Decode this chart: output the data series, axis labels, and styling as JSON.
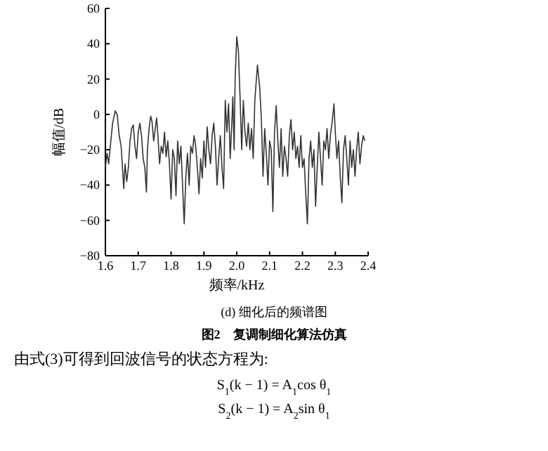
{
  "chart_data": {
    "type": "line",
    "title": "(d) 细化后的频谱图",
    "xlabel": "频率/kHz",
    "ylabel": "幅值/dB",
    "annotations": [
      "图2　复调制细化算法仿真",
      "由式(3)可得到回波信号的状态方程为:",
      "S$_{1}$(k − 1) = A$_{1}$cos θ$_{1}$",
      "S$_{2}$(k − 1) = A$_{2}$sin θ$_{1}$"
    ],
    "xlim": [
      1.6,
      2.4
    ],
    "ylim": [
      -80,
      60
    ],
    "xticks": [
      1.6,
      1.7,
      1.8,
      1.9,
      {
        "value": 2.0,
        "label": "2.0"
      },
      2.1,
      2.2,
      2.3,
      2.4
    ],
    "yticks": [
      -80,
      -60,
      -40,
      -20,
      0,
      20,
      40,
      60
    ],
    "line_style": "solid",
    "series": [
      {
        "color": "#333333",
        "x": [
          1.6,
          1.605,
          1.61,
          1.615,
          1.622,
          1.63,
          1.636,
          1.642,
          1.648,
          1.652,
          1.656,
          1.66,
          1.665,
          1.67,
          1.675,
          1.68,
          1.685,
          1.69,
          1.695,
          1.7,
          1.705,
          1.71,
          1.715,
          1.72,
          1.725,
          1.728,
          1.733,
          1.738,
          1.742,
          1.747,
          1.752,
          1.756,
          1.76,
          1.765,
          1.77,
          1.775,
          1.78,
          1.785,
          1.79,
          1.795,
          1.8,
          1.805,
          1.81,
          1.815,
          1.82,
          1.825,
          1.83,
          1.835,
          1.84,
          1.845,
          1.85,
          1.855,
          1.86,
          1.865,
          1.87,
          1.875,
          1.88,
          1.885,
          1.89,
          1.895,
          1.9,
          1.905,
          1.91,
          1.915,
          1.92,
          1.925,
          1.93,
          1.935,
          1.94,
          1.945,
          1.95,
          1.955,
          1.96,
          1.965,
          1.97,
          1.975,
          1.98,
          1.985,
          1.988,
          1.992,
          1.995,
          2.0,
          2.005,
          2.01,
          2.015,
          2.02,
          2.025,
          2.03,
          2.035,
          2.04,
          2.045,
          2.05,
          2.055,
          2.063,
          2.07,
          2.075,
          2.08,
          2.085,
          2.09,
          2.095,
          2.1,
          2.105,
          2.11,
          2.115,
          2.12,
          2.125,
          2.13,
          2.135,
          2.14,
          2.145,
          2.15,
          2.155,
          2.16,
          2.165,
          2.17,
          2.175,
          2.18,
          2.185,
          2.19,
          2.195,
          2.2,
          2.205,
          2.21,
          2.215,
          2.22,
          2.225,
          2.23,
          2.235,
          2.24,
          2.245,
          2.25,
          2.255,
          2.26,
          2.265,
          2.27,
          2.275,
          2.28,
          2.285,
          2.29,
          2.296,
          2.3,
          2.305,
          2.31,
          2.315,
          2.32,
          2.325,
          2.33,
          2.335,
          2.34,
          2.345,
          2.35,
          2.355,
          2.36,
          2.365,
          2.37,
          2.375,
          2.38,
          2.385,
          2.39
        ],
        "values": [
          -30,
          -22,
          -28,
          -18,
          -5,
          2,
          0,
          -12,
          -18,
          -30,
          -42,
          -28,
          -38,
          -30,
          -15,
          -8,
          -6,
          -18,
          -25,
          -10,
          -5,
          -12,
          -25,
          -30,
          -44,
          -20,
          -8,
          -1,
          -4,
          -15,
          -8,
          -2,
          -12,
          -28,
          -18,
          -22,
          -10,
          -24,
          -15,
          -28,
          -48,
          -20,
          -25,
          -46,
          -15,
          -28,
          -18,
          -40,
          -62,
          -35,
          -22,
          -40,
          -18,
          -22,
          -12,
          -18,
          -30,
          -45,
          -25,
          -36,
          -15,
          -30,
          -7,
          -20,
          -28,
          -12,
          -5,
          -18,
          -40,
          -25,
          -12,
          -30,
          -42,
          8,
          -10,
          6,
          -25,
          -5,
          10,
          -20,
          20,
          44,
          36,
          10,
          -20,
          8,
          -10,
          -18,
          -5,
          -20,
          -8,
          -25,
          8,
          28,
          15,
          -3,
          -35,
          -8,
          -22,
          -40,
          -15,
          -20,
          -55,
          -10,
          5,
          -15,
          -30,
          -8,
          -35,
          -18,
          -25,
          -35,
          -12,
          -3,
          -20,
          -10,
          -25,
          -18,
          -30,
          -12,
          -30,
          -25,
          -45,
          -62,
          -25,
          -15,
          -30,
          -20,
          -52,
          -30,
          -10,
          -25,
          -40,
          -15,
          -20,
          -8,
          -25,
          -12,
          -5,
          6,
          -10,
          -25,
          -15,
          -35,
          -50,
          -20,
          -12,
          -25,
          -40,
          -15,
          -30,
          -20,
          -35,
          -20,
          -10,
          -28,
          -18,
          -12,
          -15
        ]
      }
    ]
  }
}
